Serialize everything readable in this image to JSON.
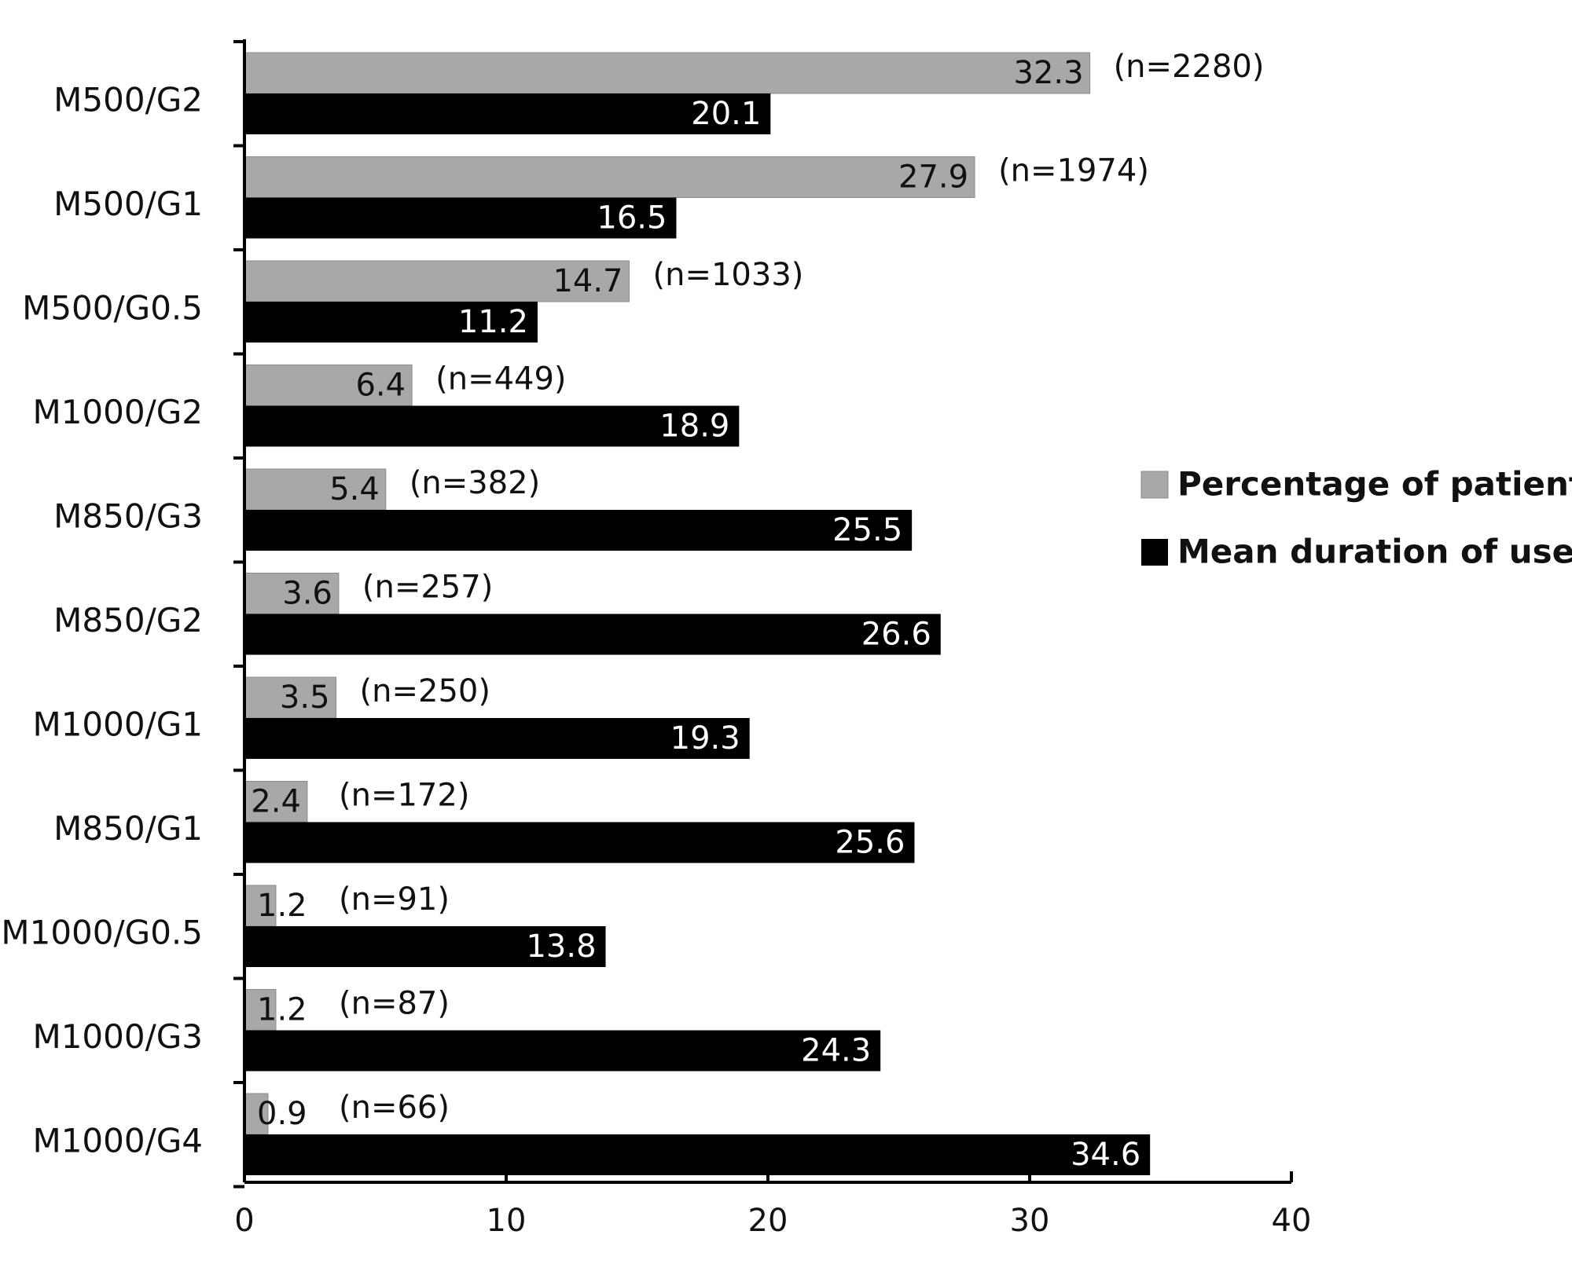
{
  "chart_data": {
    "type": "bar",
    "orientation": "horizontal",
    "title": "",
    "xlabel": "",
    "ylabel": "",
    "xlim": [
      0,
      40
    ],
    "xticks": [
      0,
      10,
      20,
      30,
      40
    ],
    "grid": false,
    "legend_position": "right",
    "categories": [
      "M500/G2",
      "M500/G1",
      "M500/G0.5",
      "M1000/G2",
      "M850/G3",
      "M850/G2",
      "M1000/G1",
      "M850/G1",
      "M1000/G0.5",
      "M1000/G3",
      "M1000/G4"
    ],
    "series": [
      {
        "name": "Percentage of patients",
        "color": "#a8a8a8",
        "values": [
          32.3,
          27.9,
          14.7,
          6.4,
          5.4,
          3.6,
          3.5,
          2.4,
          1.2,
          1.2,
          0.9
        ],
        "labels": [
          "32.3",
          "27.9",
          "14.7",
          "6.4",
          "5.4",
          "3.6",
          "3.5",
          "2.4",
          "1.2",
          "1.2",
          "0.9"
        ]
      },
      {
        "name": "Mean duration of use",
        "color": "#000000",
        "values": [
          20.1,
          16.5,
          11.2,
          18.9,
          25.5,
          26.6,
          19.3,
          25.6,
          13.8,
          24.3,
          34.6
        ],
        "labels": [
          "20.1",
          "16.5",
          "11.2",
          "18.9",
          "25.5",
          "26.6",
          "19.3",
          "25.6",
          "13.8",
          "24.3",
          "34.6"
        ]
      }
    ],
    "annotations": [
      "(n=2280)",
      "(n=1974)",
      "(n=1033)",
      "(n=449)",
      "(n=382)",
      "(n=257)",
      "(n=250)",
      "(n=172)",
      "(n=91)",
      "(n=87)",
      "(n=66)"
    ]
  }
}
